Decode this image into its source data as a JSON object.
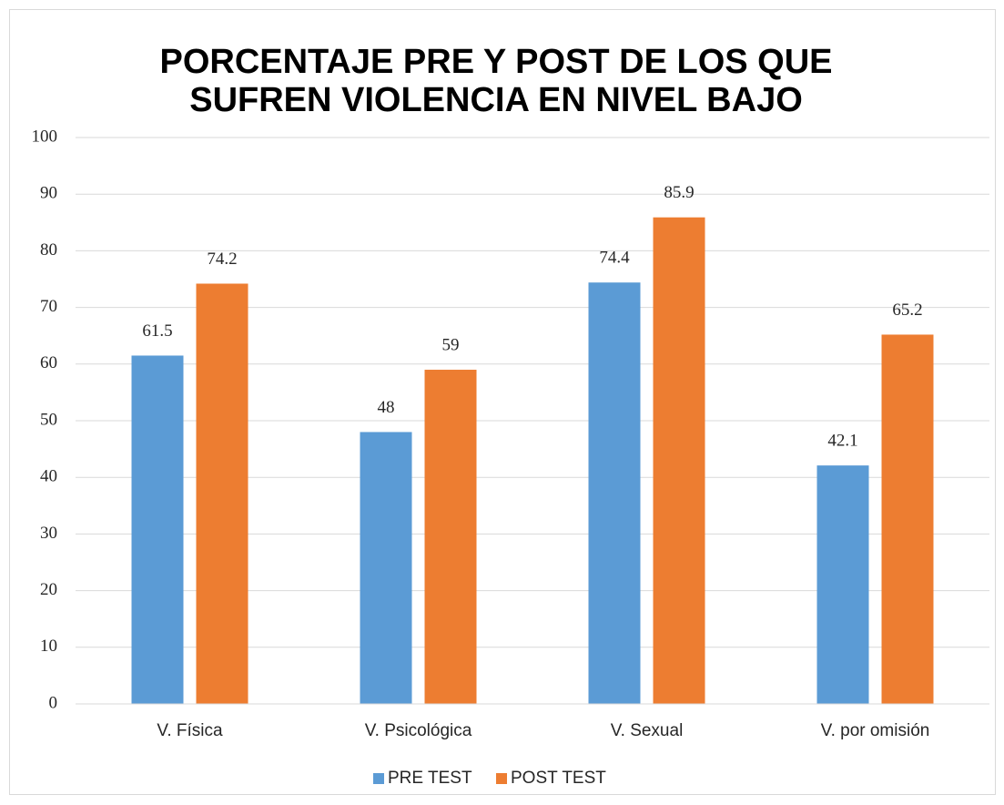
{
  "chart_data": {
    "type": "bar",
    "title": [
      "PORCENTAJE PRE Y POST DE LOS QUE",
      "SUFREN VIOLENCIA EN  NIVEL BAJO"
    ],
    "categories": [
      "V. Física",
      "V. Psicológica",
      "V. Sexual",
      "V. por omisión"
    ],
    "series": [
      {
        "name": "PRE TEST",
        "color": "#5b9bd5",
        "values": [
          61.5,
          48,
          74.4,
          42.1
        ]
      },
      {
        "name": "POST TEST",
        "color": "#ed7d31",
        "values": [
          74.2,
          59,
          85.9,
          65.2
        ]
      }
    ],
    "ylim": [
      0,
      100
    ],
    "yticks": [
      0,
      10,
      20,
      30,
      40,
      50,
      60,
      70,
      80,
      90,
      100
    ],
    "grid": true,
    "legend": "bottom"
  }
}
